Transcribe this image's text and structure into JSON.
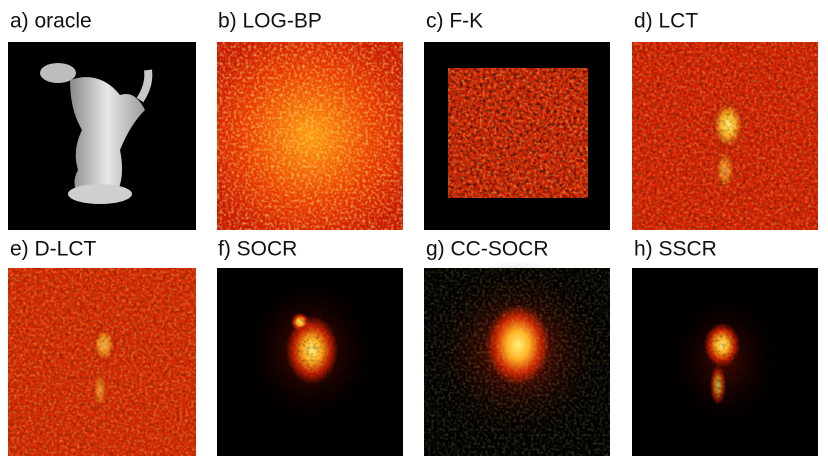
{
  "panels": [
    {
      "label": "a) oracle"
    },
    {
      "label": "b) LOG-BP"
    },
    {
      "label": "c) F-K"
    },
    {
      "label": "d) LCT"
    },
    {
      "label": "e) D-LCT"
    },
    {
      "label": "f) SOCR"
    },
    {
      "label": "g) CC-SOCR"
    },
    {
      "label": "h) SSCR"
    }
  ]
}
